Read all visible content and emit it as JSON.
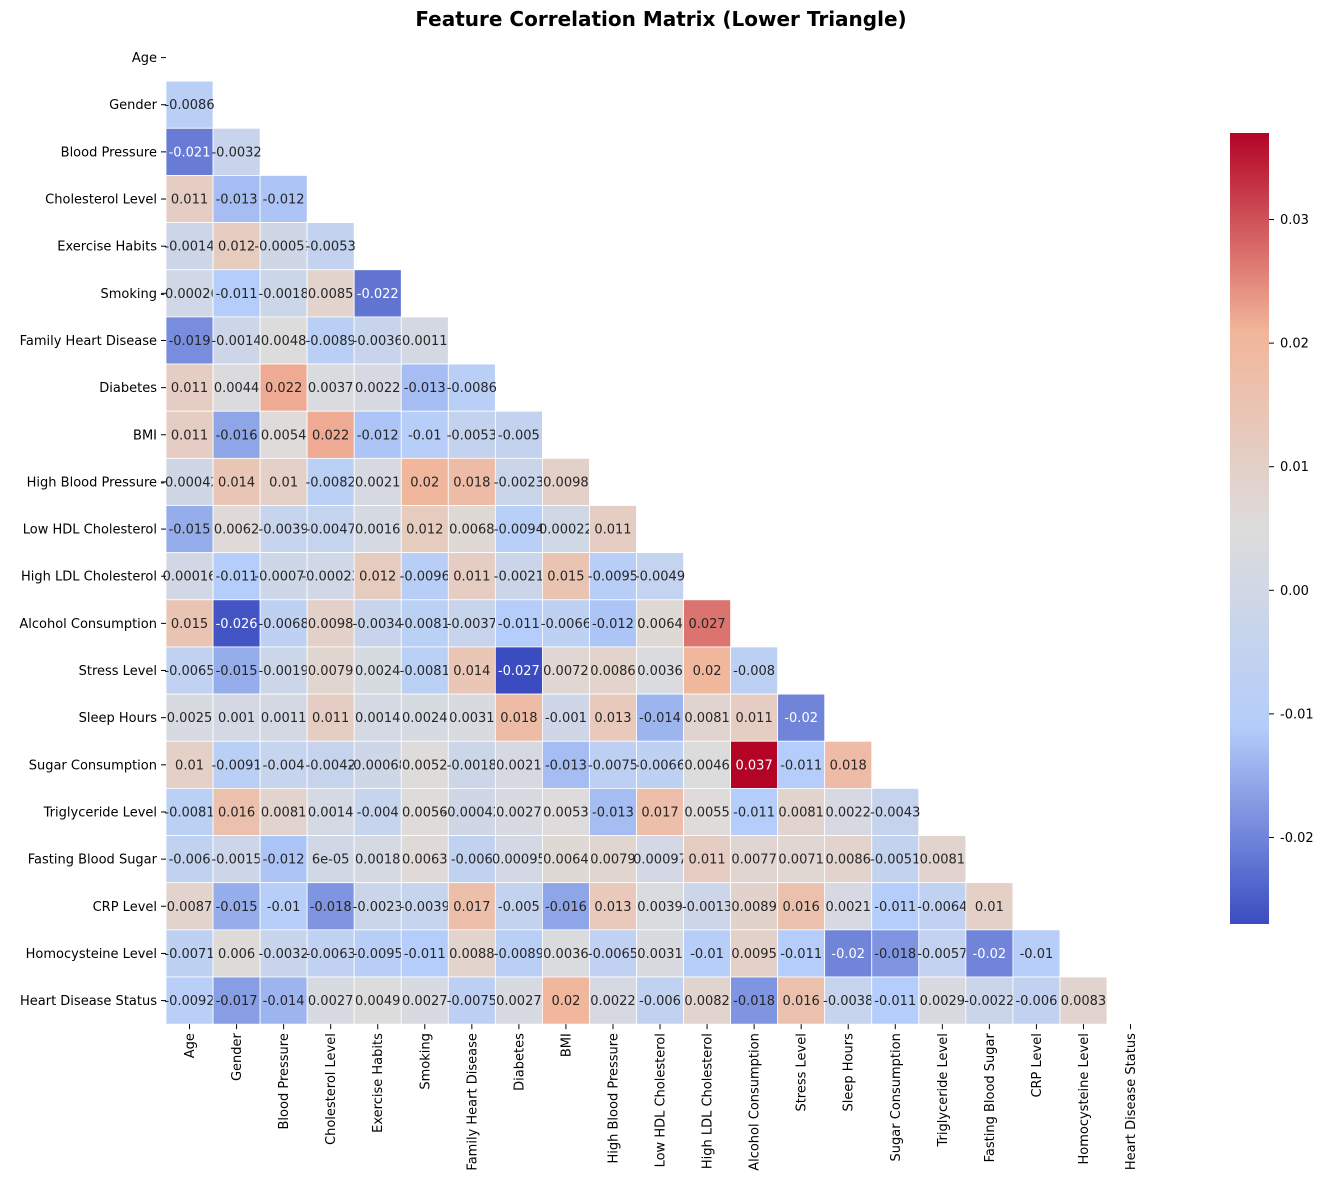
{
  "chart_data": {
    "type": "heatmap",
    "title": "Feature Correlation Matrix (Lower Triangle)",
    "xlabel": "",
    "ylabel": "",
    "features": [
      "Age",
      "Gender",
      "Blood Pressure",
      "Cholesterol Level",
      "Exercise Habits",
      "Smoking",
      "Family Heart Disease",
      "Diabetes",
      "BMI",
      "High Blood Pressure",
      "Low HDL Cholesterol",
      "High LDL Cholesterol",
      "Alcohol Consumption",
      "Stress Level",
      "Sleep Hours",
      "Sugar Consumption",
      "Triglyceride Level",
      "Fasting Blood Sugar",
      "CRP Level",
      "Homocysteine Level",
      "Heart Disease Status"
    ],
    "values": [
      [],
      [
        "-0.0086"
      ],
      [
        "-0.021",
        "-0.0032"
      ],
      [
        "0.011",
        "-0.013",
        "-0.012"
      ],
      [
        "-0.0014",
        "0.012",
        "-0.00051",
        "-0.0053"
      ],
      [
        "-0.00026",
        "-0.011",
        "-0.0018",
        "0.0085",
        "-0.022"
      ],
      [
        "-0.019",
        "-0.0014",
        "0.0048",
        "-0.0089",
        "-0.0036",
        "0.0011"
      ],
      [
        "0.011",
        "0.0044",
        "0.022",
        "0.0037",
        "0.0022",
        "-0.013",
        "-0.0086"
      ],
      [
        "0.011",
        "-0.016",
        "0.0054",
        "0.022",
        "-0.012",
        "-0.01",
        "-0.0053",
        "-0.005"
      ],
      [
        "-0.00042",
        "0.014",
        "0.01",
        "-0.0082",
        "0.0021",
        "0.02",
        "0.018",
        "-0.0023",
        "0.0098"
      ],
      [
        "-0.015",
        "0.0062",
        "-0.0039",
        "-0.0047",
        "0.0016",
        "0.012",
        "0.0068",
        "-0.0094",
        "0.00022",
        "0.011"
      ],
      [
        "0.00016",
        "-0.011",
        "-0.00071",
        "-0.00023",
        "0.012",
        "-0.0096",
        "0.011",
        "-0.0021",
        "0.015",
        "-0.0095",
        "-0.0049"
      ],
      [
        "0.015",
        "-0.026",
        "-0.0068",
        "0.0098",
        "-0.0034",
        "-0.0081",
        "-0.0037",
        "-0.011",
        "-0.0066",
        "-0.012",
        "0.0064",
        "0.027"
      ],
      [
        "-0.0065",
        "-0.015",
        "-0.0019",
        "0.0079",
        "0.0024",
        "-0.0081",
        "0.014",
        "-0.027",
        "0.0072",
        "0.0086",
        "0.0036",
        "0.02",
        "-0.008"
      ],
      [
        "0.0025",
        "0.001",
        "0.0011",
        "0.011",
        "0.0014",
        "0.0024",
        "0.0031",
        "0.018",
        "-0.001",
        "0.013",
        "-0.014",
        "0.0081",
        "0.011",
        "-0.02"
      ],
      [
        "0.01",
        "-0.0091",
        "-0.004",
        "-0.0042",
        "-0.00068",
        "0.0052",
        "-0.0018",
        "0.0021",
        "-0.013",
        "-0.0075",
        "-0.0066",
        "0.0046",
        "0.037",
        "-0.011",
        "0.018"
      ],
      [
        "-0.0081",
        "0.016",
        "0.0081",
        "0.0014",
        "-0.004",
        "0.0056",
        "-0.00042",
        "0.0027",
        "0.0053",
        "-0.013",
        "0.017",
        "0.0055",
        "-0.011",
        "0.0081",
        "0.0022",
        "-0.0043"
      ],
      [
        "-0.006",
        "-0.0015",
        "-0.012",
        "6e-05",
        "0.0018",
        "0.0063",
        "-0.006",
        "0.00095",
        "0.0064",
        "0.0079",
        "0.00097",
        "0.011",
        "0.0077",
        "0.0071",
        "0.0086",
        "-0.0051",
        "0.0081"
      ],
      [
        "0.0087",
        "-0.015",
        "-0.01",
        "-0.018",
        "-0.0023",
        "-0.0039",
        "0.017",
        "-0.005",
        "-0.016",
        "0.013",
        "0.0039",
        "-0.0013",
        "0.0089",
        "0.016",
        "0.0021",
        "-0.011",
        "-0.0064",
        "0.01"
      ],
      [
        "-0.0071",
        "0.006",
        "-0.0032",
        "-0.0063",
        "-0.0095",
        "-0.011",
        "0.0088",
        "-0.0089",
        "0.0036",
        "-0.0065",
        "0.0031",
        "-0.01",
        "0.0095",
        "-0.011",
        "-0.02",
        "-0.018",
        "-0.0057",
        "-0.02",
        "-0.01"
      ],
      [
        "-0.0092",
        "-0.017",
        "-0.014",
        "0.0027",
        "0.0049",
        "0.0027",
        "-0.0075",
        "0.0027",
        "0.02",
        "0.0022",
        "-0.006",
        "0.0082",
        "-0.018",
        "0.016",
        "-0.0038",
        "-0.011",
        "0.0029",
        "-0.0022",
        "-0.006",
        "0.0083"
      ]
    ],
    "color_range": [
      -0.027,
      0.037
    ],
    "colorbar_ticks": [
      "-0.02",
      "-0.01",
      "0.00",
      "0.01",
      "0.02",
      "0.03"
    ],
    "colormap": "coolwarm",
    "colormap_stops": [
      "#3b4cc0",
      "#b4cdfa",
      "#dddcdc",
      "#f2b599",
      "#b40426"
    ],
    "grid": false,
    "legend": "colorbar-right"
  }
}
